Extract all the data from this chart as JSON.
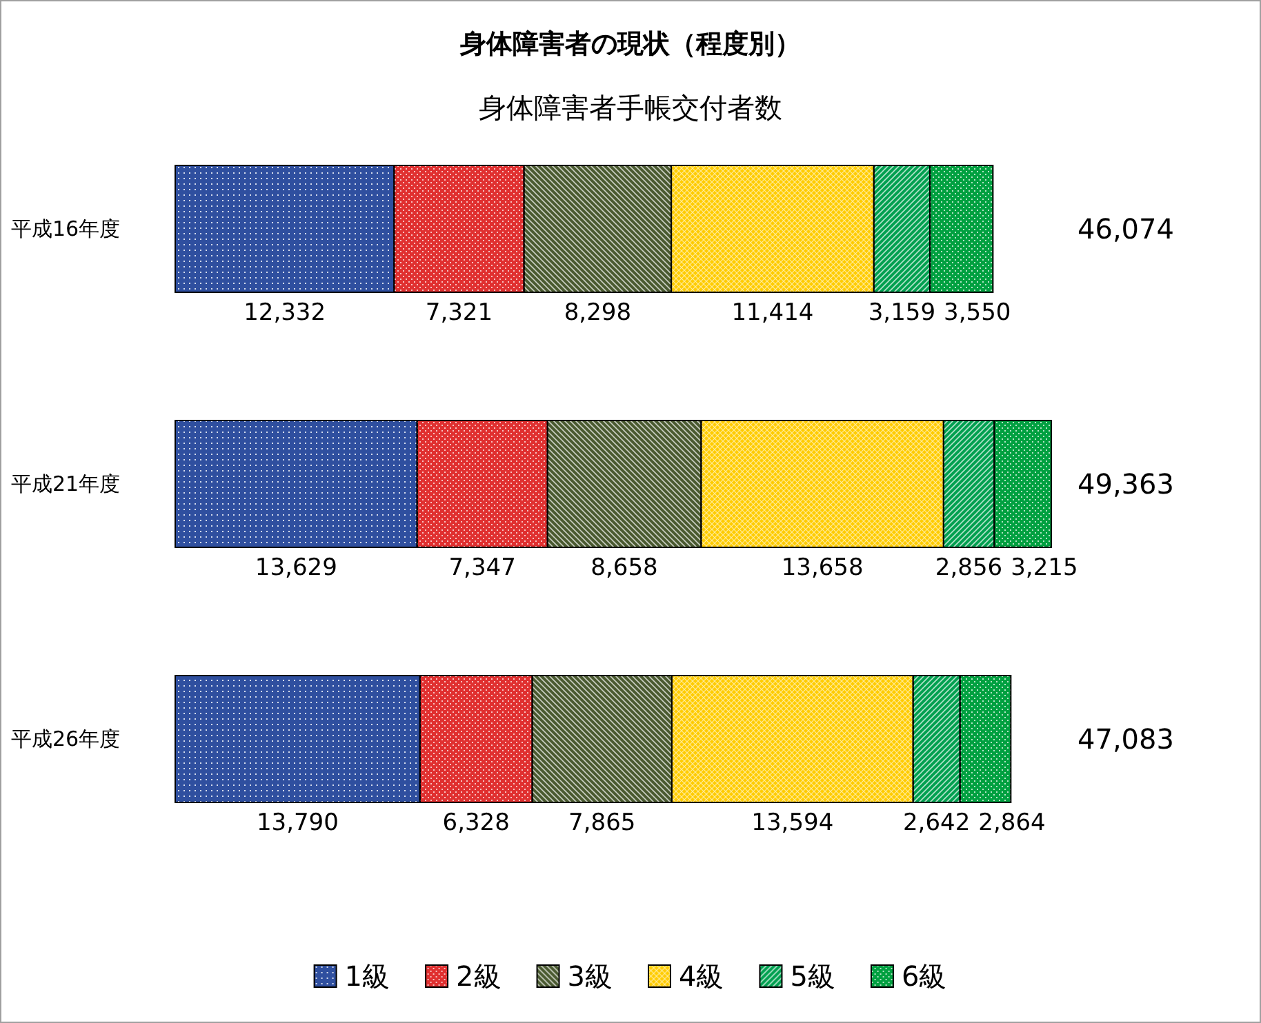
{
  "chart_data": {
    "type": "bar",
    "orientation": "horizontal",
    "stacked": true,
    "title": "身体障害者の現状（程度別）",
    "subtitle": "身体障害者手帳交付者数",
    "categories": [
      "平成16年度",
      "平成21年度",
      "平成26年度"
    ],
    "series": [
      {
        "name": "1級",
        "color": "#2f4f9f",
        "values": [
          12332,
          13629,
          13790
        ],
        "value_labels": [
          "12,332",
          "13,629",
          "13,790"
        ]
      },
      {
        "name": "2級",
        "color": "#e03030",
        "values": [
          7321,
          7347,
          6328
        ],
        "value_labels": [
          "7,321",
          "7,347",
          "6,328"
        ]
      },
      {
        "name": "3級",
        "color": "#4a5a30",
        "values": [
          8298,
          8658,
          7865
        ],
        "value_labels": [
          "8,298",
          "8,658",
          "7,865"
        ]
      },
      {
        "name": "4級",
        "color": "#ffcc00",
        "values": [
          11414,
          13658,
          13594
        ],
        "value_labels": [
          "11,414",
          "13,658",
          "13,594"
        ]
      },
      {
        "name": "5級",
        "color": "#00a050",
        "values": [
          3159,
          2856,
          2642
        ],
        "value_labels": [
          "3,159",
          "2,856",
          "2,642"
        ]
      },
      {
        "name": "6級",
        "color": "#00a040",
        "values": [
          3550,
          3215,
          2864
        ],
        "value_labels": [
          "3,550",
          "3,215",
          "2,864"
        ]
      }
    ],
    "totals": [
      "46,074",
      "49,363",
      "47,083"
    ],
    "legend": "bottom",
    "grid": false
  }
}
